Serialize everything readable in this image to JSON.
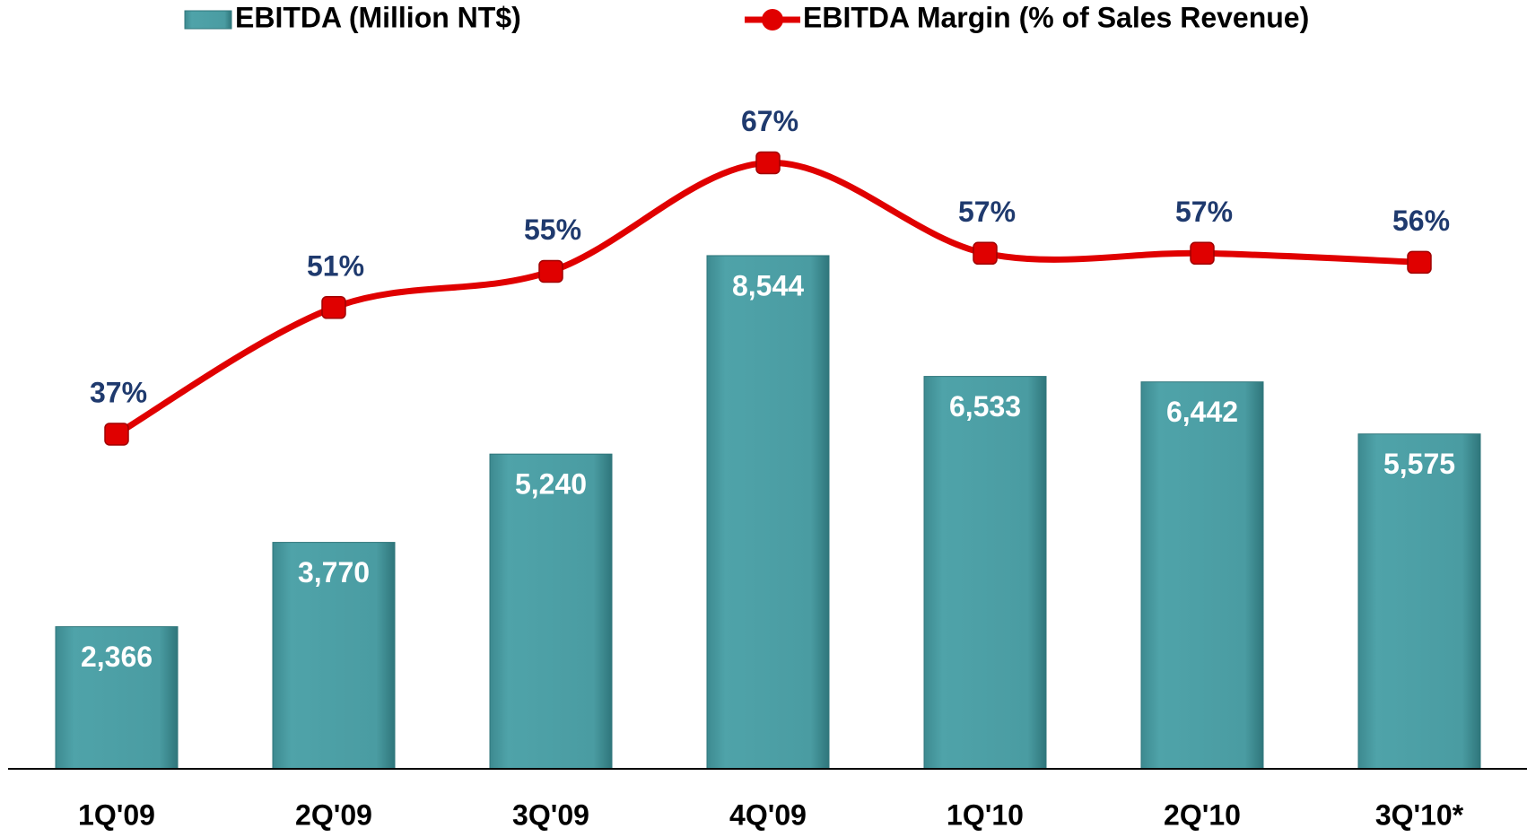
{
  "chart_data": {
    "type": "bar-line",
    "categories": [
      "1Q'09",
      "2Q'09",
      "3Q'09",
      "4Q'09",
      "1Q'10",
      "2Q'10",
      "3Q'10*"
    ],
    "series": [
      {
        "name": "EBITDA (Million NT$)",
        "type": "bar",
        "color": "#4a9ca2",
        "values": [
          2366,
          3770,
          5240,
          8544,
          6533,
          6442,
          5575
        ],
        "value_labels": [
          "2,366",
          "3,770",
          "5,240",
          "8,544",
          "6,533",
          "6,442",
          "5,575"
        ]
      },
      {
        "name": "EBITDA Margin (% of Sales Revenue)",
        "type": "line",
        "axis": "y2",
        "color": "#e00000",
        "values": [
          37,
          51,
          55,
          67,
          57,
          57,
          56
        ],
        "value_labels": [
          "37%",
          "51%",
          "55%",
          "67%",
          "57%",
          "57%",
          "56%"
        ]
      }
    ],
    "ylim": [
      0,
      12800
    ],
    "y2lim": [
      0,
      85
    ]
  }
}
